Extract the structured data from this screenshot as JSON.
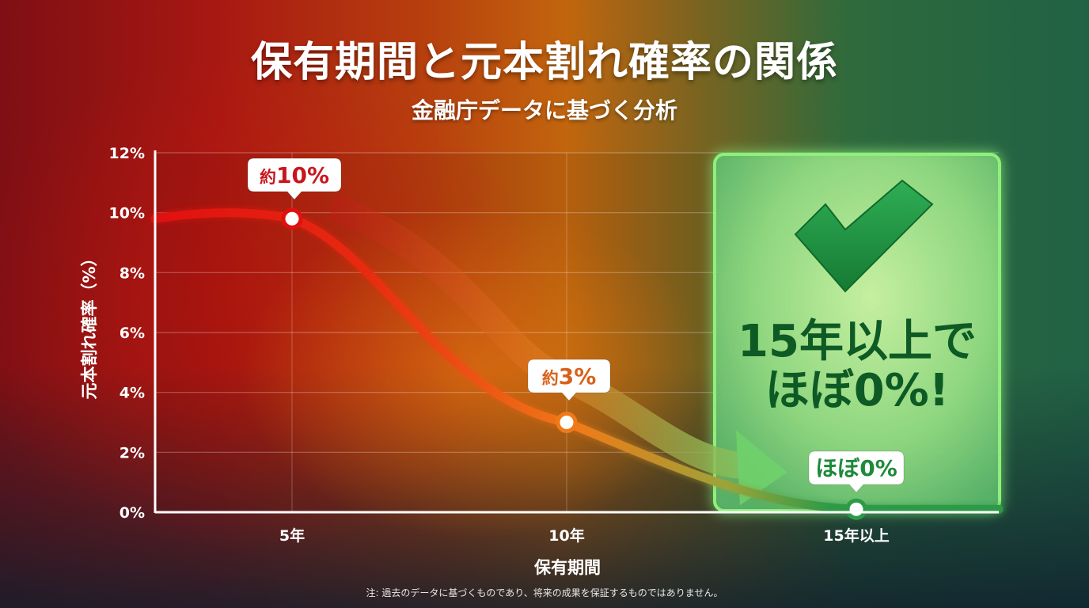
{
  "header": {
    "title": "保有期間と元本割れ確率の関係",
    "subtitle": "金融庁データに基づく分析"
  },
  "chart_data": {
    "type": "line",
    "ylabel": "元本割れ確率（%）",
    "xlabel": "保有期間",
    "ylim": [
      0,
      12
    ],
    "yticks": [
      "0%",
      "2%",
      "4%",
      "6%",
      "8%",
      "10%",
      "12%"
    ],
    "categories": [
      "5年",
      "10年",
      "15年以上"
    ],
    "series": [
      {
        "values": [
          9.8,
          3.0,
          0.1
        ]
      }
    ],
    "grid": true,
    "annotations": [
      {
        "prefix": "約",
        "value": "10%"
      },
      {
        "prefix": "約",
        "value": "3%"
      },
      {
        "prefix": "",
        "value": "ほぼ0%"
      }
    ],
    "highlight": {
      "line1": "15年以上で",
      "line2": "ほぼ0%!"
    }
  },
  "colors": {
    "high": "#e01010",
    "mid": "#f07a18",
    "low": "#2e9a48",
    "check": "#1d8a3a",
    "highlight_text": "#0d5a24"
  },
  "footnote": "注: 過去のデータに基づくものであり、将来の成果を保証するものではありません。"
}
